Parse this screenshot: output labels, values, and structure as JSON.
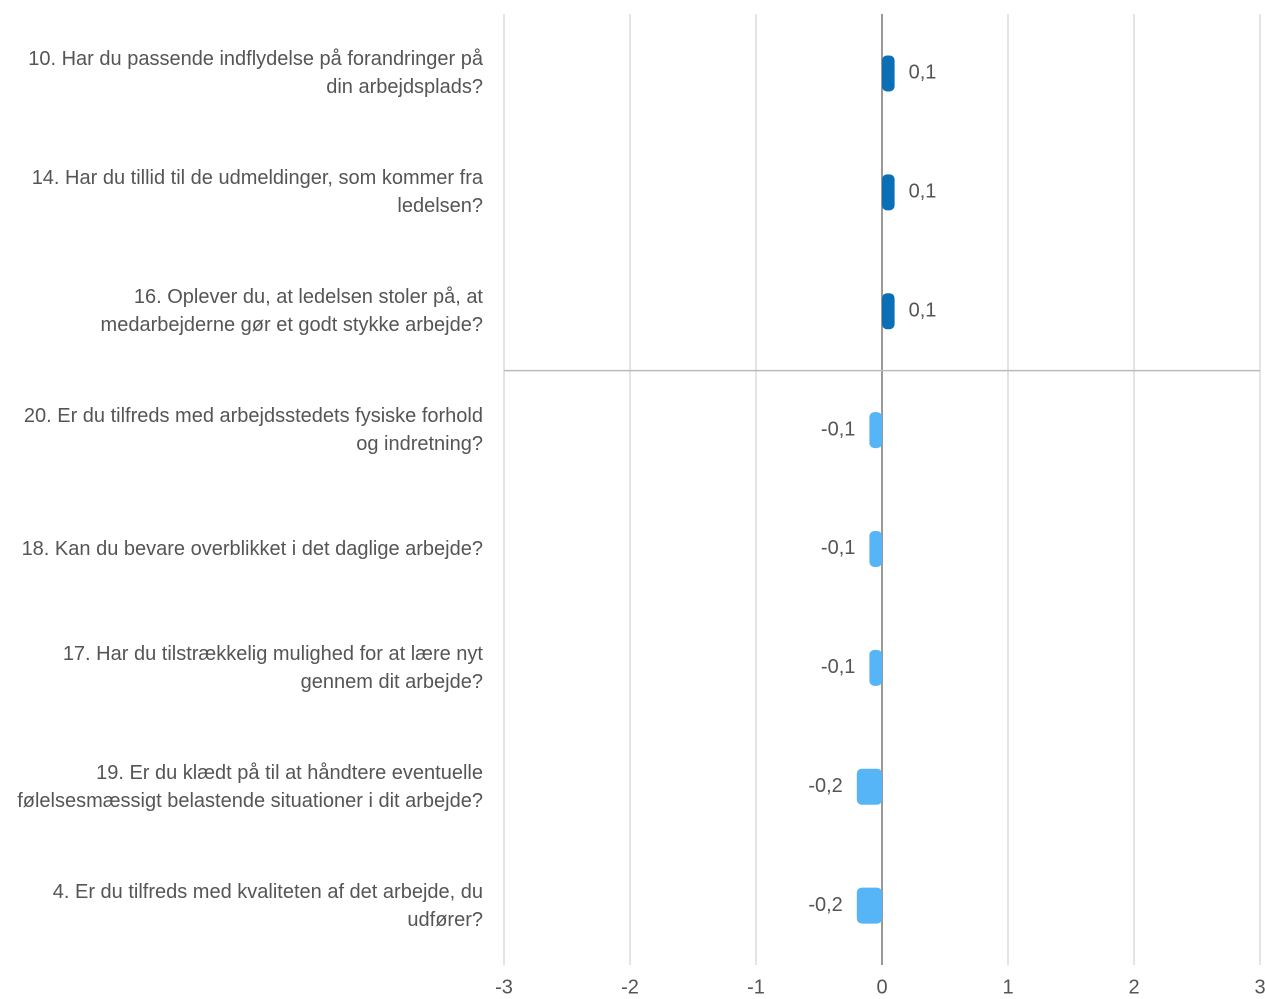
{
  "chart_data": {
    "type": "hbar",
    "categories": [
      "10. Har du passende indflydelse på forandringer på din arbejdsplads?",
      "14. Har du tillid til de udmeldinger, som kommer fra ledelsen?",
      "16. Oplever du, at ledelsen stoler på, at medarbejderne gør et godt stykke arbejde?",
      "20. Er du tilfreds med arbejdsstedets fysiske forhold og indretning?",
      "18. Kan du bevare overblikket i det daglige arbejde?",
      "17. Har du tilstrækkelig mulighed for at lære nyt gennem dit arbejde?",
      "19. Er du klædt på til at håndtere eventuelle følelsesmæssigt belastende situationer i dit arbejde?",
      "4. Er du tilfreds med kvaliteten af det arbejde, du udfører?"
    ],
    "values": [
      0.1,
      0.1,
      0.1,
      -0.1,
      -0.1,
      -0.1,
      -0.2,
      -0.2
    ],
    "value_labels": [
      "0,1",
      "0,1",
      "0,1",
      "-0,1",
      "-0,1",
      "-0,1",
      "-0,2",
      "-0,2"
    ],
    "positive_color": "#0b6fb6",
    "negative_color": "#55b5f6",
    "xlim": [
      -3,
      3
    ],
    "xticks": [
      -3,
      -2,
      -1,
      0,
      1,
      2,
      3
    ],
    "grid": true
  }
}
